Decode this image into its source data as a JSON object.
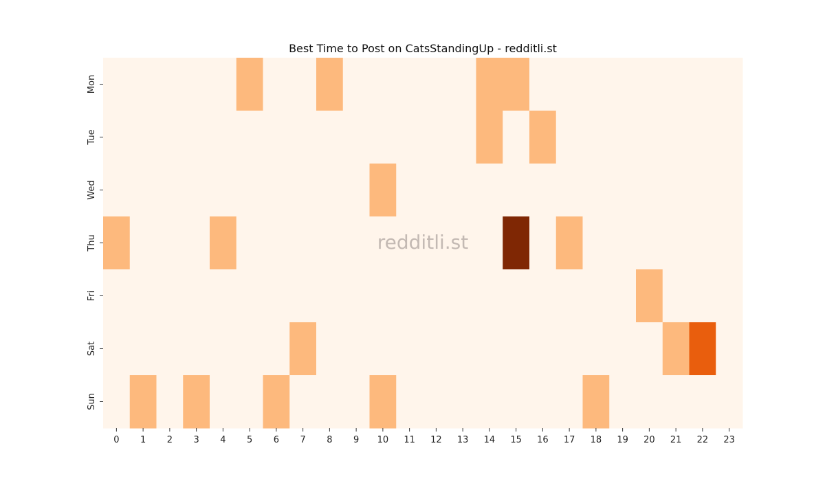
{
  "chart_data": {
    "type": "heatmap",
    "title": "Best Time to Post on CatsStandingUp - redditli.st",
    "watermark": "redditli.st",
    "xlabel": "",
    "ylabel": "",
    "x": [
      "0",
      "1",
      "2",
      "3",
      "4",
      "5",
      "6",
      "7",
      "8",
      "9",
      "10",
      "11",
      "12",
      "13",
      "14",
      "15",
      "16",
      "17",
      "18",
      "19",
      "20",
      "21",
      "22",
      "23"
    ],
    "y": [
      "Mon",
      "Tue",
      "Wed",
      "Thu",
      "Fri",
      "Sat",
      "Sun"
    ],
    "values": [
      [
        0,
        0,
        0,
        0,
        0,
        1,
        0,
        0,
        1,
        0,
        0,
        0,
        0,
        0,
        1,
        1,
        0,
        0,
        0,
        0,
        0,
        0,
        0,
        0
      ],
      [
        0,
        0,
        0,
        0,
        0,
        0,
        0,
        0,
        0,
        0,
        0,
        0,
        0,
        0,
        1,
        0,
        1,
        0,
        0,
        0,
        0,
        0,
        0,
        0
      ],
      [
        0,
        0,
        0,
        0,
        0,
        0,
        0,
        0,
        0,
        0,
        1,
        0,
        0,
        0,
        0,
        0,
        0,
        0,
        0,
        0,
        0,
        0,
        0,
        0
      ],
      [
        1,
        0,
        0,
        0,
        1,
        0,
        0,
        0,
        0,
        0,
        0,
        0,
        0,
        0,
        0,
        4,
        0,
        1,
        0,
        0,
        0,
        0,
        0,
        0
      ],
      [
        0,
        0,
        0,
        0,
        0,
        0,
        0,
        0,
        0,
        0,
        0,
        0,
        0,
        0,
        0,
        0,
        0,
        0,
        0,
        0,
        1,
        0,
        0,
        0
      ],
      [
        0,
        0,
        0,
        0,
        0,
        0,
        0,
        1,
        0,
        0,
        0,
        0,
        0,
        0,
        0,
        0,
        0,
        0,
        0,
        0,
        0,
        1,
        2,
        0
      ],
      [
        0,
        1,
        0,
        1,
        0,
        0,
        1,
        0,
        0,
        0,
        1,
        0,
        0,
        0,
        0,
        0,
        0,
        0,
        1,
        0,
        0,
        0,
        0,
        0
      ]
    ],
    "colorscale": {
      "0": "#fff5eb",
      "1": "#fdb97d",
      "2": "#e95e0d",
      "4": "#7f2704"
    },
    "grid": false,
    "legend": "none"
  }
}
